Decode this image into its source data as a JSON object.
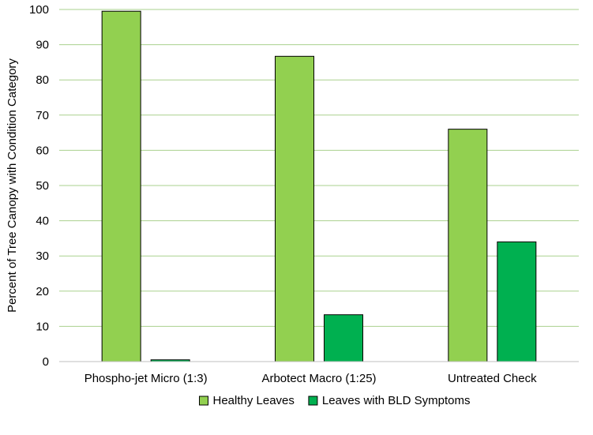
{
  "chart_data": {
    "type": "bar",
    "title": "",
    "xlabel": "",
    "ylabel": "Percent of Tree Canopy with Condition Category",
    "ylim": [
      0,
      100
    ],
    "yticks": [
      0,
      10,
      20,
      30,
      40,
      50,
      60,
      70,
      80,
      90,
      100
    ],
    "grid": true,
    "legend_position": "bottom",
    "categories": [
      "Phospho-jet Micro (1:3)",
      "Arbotect Macro (1:25)",
      "Untreated Check"
    ],
    "series": [
      {
        "name": "Healthy Leaves",
        "color": "#92d050",
        "values": [
          99.5,
          86.7,
          66.0
        ]
      },
      {
        "name": "Leaves with BLD Symptoms",
        "color": "#00b050",
        "values": [
          0.5,
          13.3,
          34.0
        ]
      }
    ],
    "gridline_color": "#a9d18e",
    "axis_color": "#bfbfbf",
    "bar_outline_color": "#000000"
  }
}
